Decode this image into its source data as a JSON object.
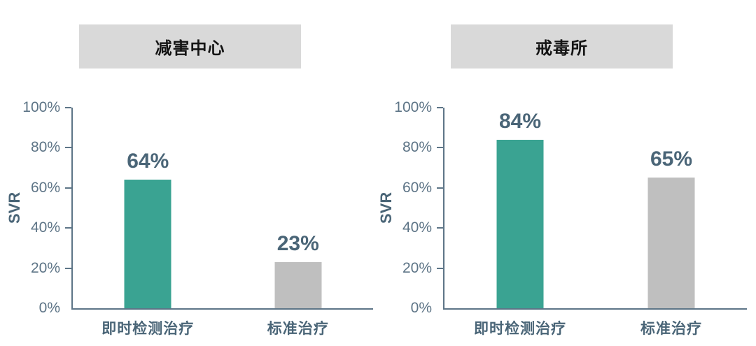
{
  "palette": {
    "background": "#ffffff",
    "teal_bar": "#3aa392",
    "gray_bar": "#bfbfbf",
    "title_bg": "#d9d9d9",
    "title_text": "#141414",
    "axis_line": "#5d7587",
    "tick_label_text": "#5d7486",
    "value_label_text": "#4a6577",
    "category_label_text": "#4a6577"
  },
  "chart_data": [
    {
      "type": "bar",
      "title": "减害中心",
      "ylabel": "SVR",
      "ylim": [
        0,
        100
      ],
      "yticks": [
        "0%",
        "20%",
        "40%",
        "60%",
        "80%",
        "100%"
      ],
      "categories": [
        "即时检测治疗",
        "标准治疗"
      ],
      "values": [
        64,
        23
      ],
      "value_labels": [
        "64%",
        "23%"
      ],
      "bar_colors": [
        "#3aa392",
        "#bfbfbf"
      ],
      "grid": false,
      "legend_position": "none"
    },
    {
      "type": "bar",
      "title": "戒毒所",
      "ylabel": "SVR",
      "ylim": [
        0,
        100
      ],
      "yticks": [
        "0%",
        "20%",
        "40%",
        "60%",
        "80%",
        "100%"
      ],
      "categories": [
        "即时检测治疗",
        "标准治疗"
      ],
      "values": [
        84,
        65
      ],
      "value_labels": [
        "84%",
        "65%"
      ],
      "bar_colors": [
        "#3aa392",
        "#bfbfbf"
      ],
      "grid": false,
      "legend_position": "none"
    }
  ]
}
